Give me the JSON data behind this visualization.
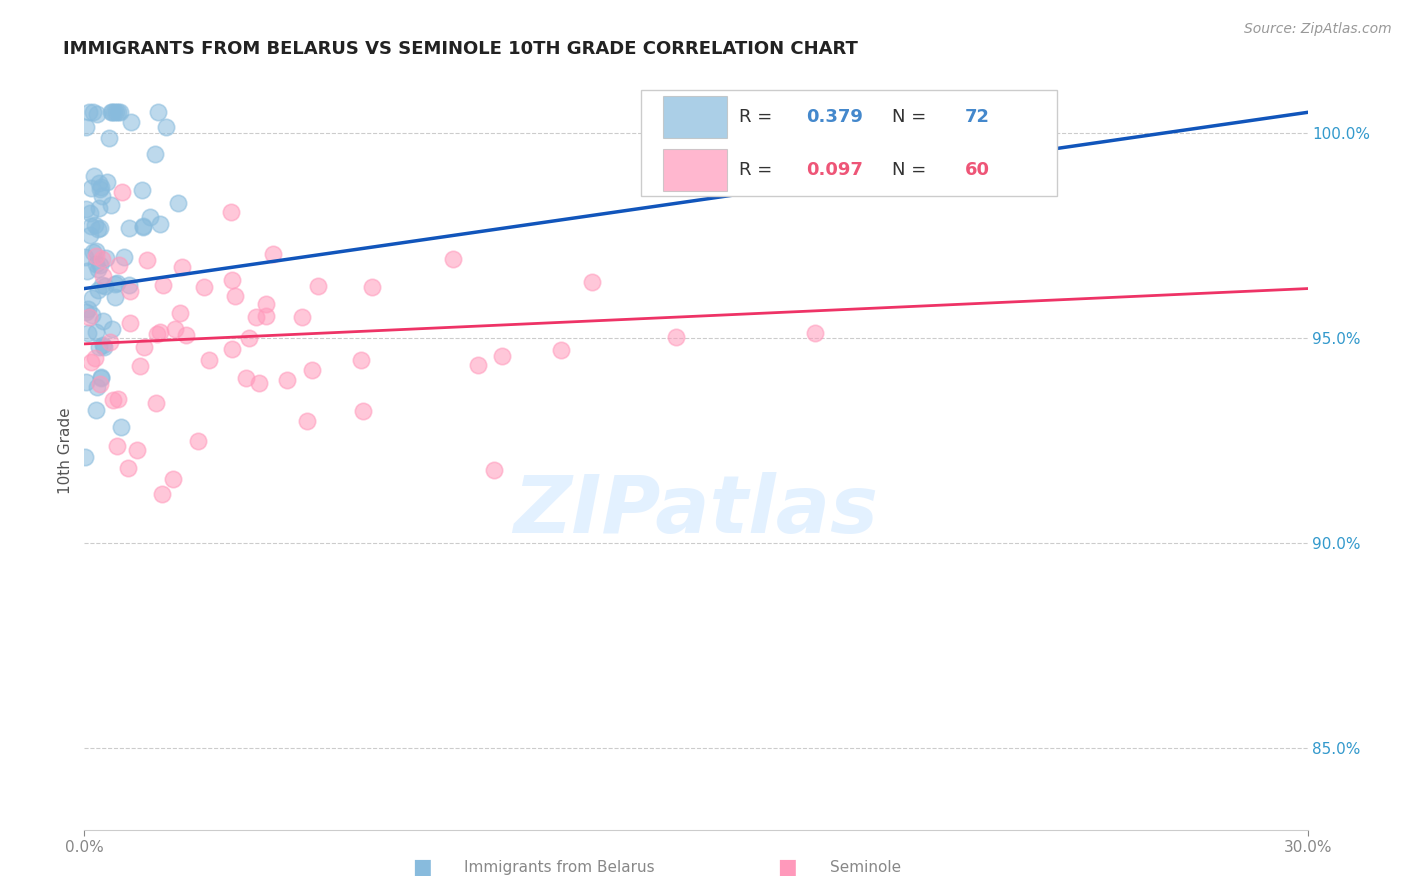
{
  "title": "IMMIGRANTS FROM BELARUS VS SEMINOLE 10TH GRADE CORRELATION CHART",
  "source_text": "Source: ZipAtlas.com",
  "ylabel": "10th Grade",
  "xlim": [
    0.0,
    30.0
  ],
  "ylim": [
    83.0,
    101.5
  ],
  "yticks": [
    85.0,
    90.0,
    95.0,
    100.0
  ],
  "ytick_labels": [
    "85.0%",
    "90.0%",
    "95.0%",
    "100.0%"
  ],
  "R_blue": "0.379",
  "N_blue": "72",
  "R_pink": "0.097",
  "N_pink": "60",
  "blue_color": "#88BBDD",
  "pink_color": "#FF99BB",
  "trend_blue": "#1155BB",
  "trend_pink": "#EE3366",
  "legend_label_blue": "Immigrants from Belarus",
  "legend_label_pink": "Seminole",
  "blue_legend_color": "#4488CC",
  "pink_legend_color": "#EE5577",
  "watermark": "ZIPatlas",
  "watermark_color": "#DDEEFF"
}
